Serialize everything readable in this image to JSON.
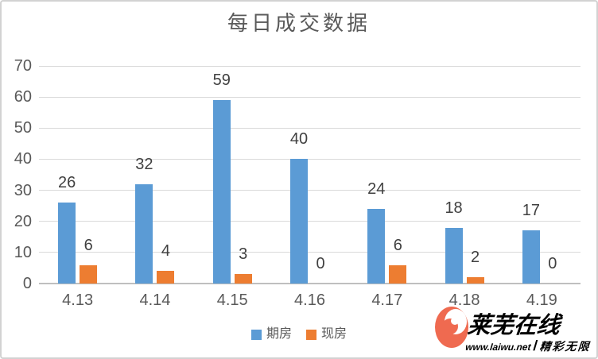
{
  "chart_data": {
    "type": "bar",
    "title": "每日成交数据",
    "categories": [
      "4.13",
      "4.14",
      "4.15",
      "4.16",
      "4.17",
      "4.18",
      "4.19"
    ],
    "series": [
      {
        "name": "期房",
        "color": "#5B9BD5",
        "values": [
          26,
          32,
          59,
          40,
          24,
          18,
          17
        ]
      },
      {
        "name": "现房",
        "color": "#ED7D31",
        "values": [
          6,
          4,
          3,
          0,
          6,
          2,
          0
        ]
      }
    ],
    "xlabel": "",
    "ylabel": "",
    "ylim": [
      0,
      70
    ],
    "ytick_step": 10,
    "grid": true,
    "data_labels": true,
    "legend_position": "bottom"
  },
  "colors": {
    "grid": "#D9D9D9",
    "axis": "#BFBFBF",
    "tick_label": "#595959",
    "data_label": "#404040",
    "title": "#595959",
    "background": "#FFFFFF",
    "border": "#D2D2D2",
    "watermark": "#EF6A50"
  },
  "watermark": {
    "name": "莱芜在线",
    "url": "www.laiwu.net",
    "separator": "/",
    "slogan": "精彩无限"
  }
}
